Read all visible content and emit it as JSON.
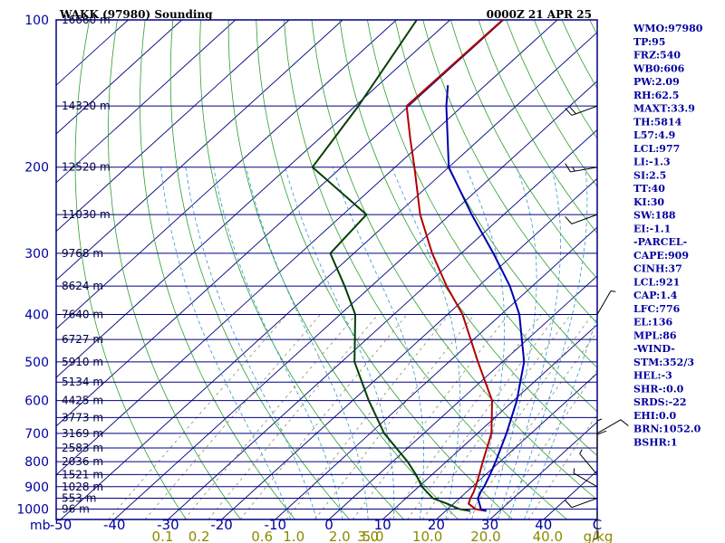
{
  "header": {
    "title": "WAKK (97980) Sounding",
    "time": "0000Z 21 APR 25"
  },
  "colors": {
    "frame": "#000080",
    "isobar": "#000080",
    "isotherm": "#000080",
    "dry_adiabat": "#2e9e2e",
    "moist_adiabat": "#3399cc",
    "mixing_ratio": "#8a8a6a",
    "temperature": "#b00000",
    "dewpoint": "#004000",
    "parcel": "#0000b0",
    "text_blue": "#0000a0",
    "mixing_text": "#8a8a00"
  },
  "chart_data": {
    "type": "skew-t",
    "title": "WAKK (97980) Sounding",
    "xlabel": "",
    "ylabel": "mb",
    "x_range": [
      -50,
      50
    ],
    "y_range": [
      100,
      1050
    ],
    "y_scale": "log",
    "pressure_ticks": [
      100,
      200,
      300,
      400,
      500,
      600,
      700,
      800,
      900,
      1000
    ],
    "temp_ticks": [
      "-50",
      "-40",
      "-30",
      "-20",
      "-10",
      "0",
      "10",
      "20",
      "30",
      "40",
      "C"
    ],
    "pressure_axis_unit": "mb",
    "mixing_ratio_unit": "g/kg",
    "height_levels": [
      {
        "p": 100,
        "label": "16660 m"
      },
      {
        "p": 150,
        "label": "14320 m"
      },
      {
        "p": 200,
        "label": "12520 m"
      },
      {
        "p": 250,
        "label": "11030 m"
      },
      {
        "p": 300,
        "label": "9768 m"
      },
      {
        "p": 350,
        "label": "8624 m"
      },
      {
        "p": 400,
        "label": "7640 m"
      },
      {
        "p": 450,
        "label": "6727 m"
      },
      {
        "p": 500,
        "label": "5910 m"
      },
      {
        "p": 550,
        "label": "5134 m"
      },
      {
        "p": 600,
        "label": "4425 m"
      },
      {
        "p": 650,
        "label": "3773 m"
      },
      {
        "p": 700,
        "label": "3169 m"
      },
      {
        "p": 750,
        "label": "2583 m"
      },
      {
        "p": 800,
        "label": "2036 m"
      },
      {
        "p": 850,
        "label": "1521 m"
      },
      {
        "p": 900,
        "label": "1028 m"
      },
      {
        "p": 950,
        "label": "553 m"
      },
      {
        "p": 1000,
        "label": "96 m"
      }
    ],
    "mixing_ratio_labels": [
      {
        "w": 0.1,
        "label": "0.1"
      },
      {
        "w": 0.2,
        "label": "0.2"
      },
      {
        "w": 0.6,
        "label": "0.6"
      },
      {
        "w": 1.0,
        "label": "1.0"
      },
      {
        "w": 2.0,
        "label": "2.0"
      },
      {
        "w": 3.0,
        "label": "3.0"
      },
      {
        "w": 5.0,
        "label": "5.0"
      },
      {
        "w": 10.0,
        "label": "10.0"
      },
      {
        "w": 20.0,
        "label": "20.0"
      },
      {
        "w": 40.0,
        "label": "40.0"
      },
      {
        "w": null,
        "label": "g/kg"
      }
    ],
    "series": [
      {
        "name": "",
        "role": "temperature",
        "points": [
          [
            1009,
            27.6
          ],
          [
            1000,
            25.2
          ],
          [
            975,
            22.8
          ],
          [
            950,
            22.0
          ],
          [
            925,
            21.4
          ],
          [
            900,
            20.6
          ],
          [
            850,
            18.8
          ],
          [
            800,
            16.8
          ],
          [
            700,
            12.6
          ],
          [
            600,
            6.0
          ],
          [
            500,
            -4.6
          ],
          [
            400,
            -17.2
          ],
          [
            350,
            -26.0
          ],
          [
            300,
            -35.4
          ],
          [
            250,
            -45.6
          ],
          [
            200,
            -56.4
          ],
          [
            175,
            -63.0
          ],
          [
            150,
            -70.4
          ],
          [
            100,
            -70.2
          ]
        ]
      },
      {
        "name": "",
        "role": "dewpoint",
        "points": [
          [
            1009,
            24.6
          ],
          [
            1000,
            22.2
          ],
          [
            975,
            18.8
          ],
          [
            950,
            15.0
          ],
          [
            900,
            10.6
          ],
          [
            850,
            7.0
          ],
          [
            800,
            2.8
          ],
          [
            700,
            -7.4
          ],
          [
            600,
            -17.0
          ],
          [
            500,
            -27.6
          ],
          [
            400,
            -37.2
          ],
          [
            350,
            -45.0
          ],
          [
            300,
            -54.4
          ],
          [
            250,
            -55.6
          ],
          [
            200,
            -75.4
          ],
          [
            150,
            -79.4
          ],
          [
            100,
            -86.2
          ]
        ]
      },
      {
        "name": "",
        "role": "parcel",
        "points": [
          [
            1009,
            27.6
          ],
          [
            1000,
            26.2
          ],
          [
            950,
            23.4
          ],
          [
            921,
            22.6
          ],
          [
            900,
            22.2
          ],
          [
            850,
            20.8
          ],
          [
            800,
            19.2
          ],
          [
            700,
            15.4
          ],
          [
            600,
            10.6
          ],
          [
            500,
            4.0
          ],
          [
            400,
            -6.6
          ],
          [
            350,
            -14.2
          ],
          [
            300,
            -24.0
          ],
          [
            250,
            -36.0
          ],
          [
            200,
            -50.0
          ],
          [
            150,
            -63.0
          ],
          [
            136,
            -67.0
          ]
        ]
      }
    ],
    "wind_barbs": [
      {
        "p": 1009,
        "dir": 180,
        "kt": 5
      },
      {
        "p": 950,
        "dir": 250,
        "kt": 10
      },
      {
        "p": 900,
        "dir": 300,
        "kt": 5
      },
      {
        "p": 850,
        "dir": 320,
        "kt": 5
      },
      {
        "p": 800,
        "dir": 0,
        "kt": 10
      },
      {
        "p": 750,
        "dir": 0,
        "kt": 5
      },
      {
        "p": 700,
        "dir": 60,
        "kt": 10
      },
      {
        "p": 400,
        "dir": 30,
        "kt": 5
      },
      {
        "p": 250,
        "dir": 250,
        "kt": 10
      },
      {
        "p": 200,
        "dir": 260,
        "kt": 15
      },
      {
        "p": 150,
        "dir": 250,
        "kt": 20
      }
    ]
  },
  "indices": [
    "WMO:97980",
    "TP:95",
    "FRZ:540",
    "WB0:606",
    "PW:2.09",
    "RH:62.5",
    "MAXT:33.9",
    "TH:5814",
    "L57:4.9",
    "LCL:977",
    "LI:-1.3",
    "SI:2.5",
    "TT:40",
    "KI:30",
    "SW:188",
    "EI:-1.1",
    "-PARCEL-",
    "CAPE:909",
    "CINH:37",
    "LCL:921",
    "CAP:1.4",
    "LFC:776",
    "EL:136",
    "MPL:86",
    "-WIND-",
    "STM:352/3",
    "HEL:-3",
    "SHR-:0.0",
    "SRDS:-22",
    "EHI:0.0",
    "BRN:1052.0",
    "BSHR:1"
  ]
}
